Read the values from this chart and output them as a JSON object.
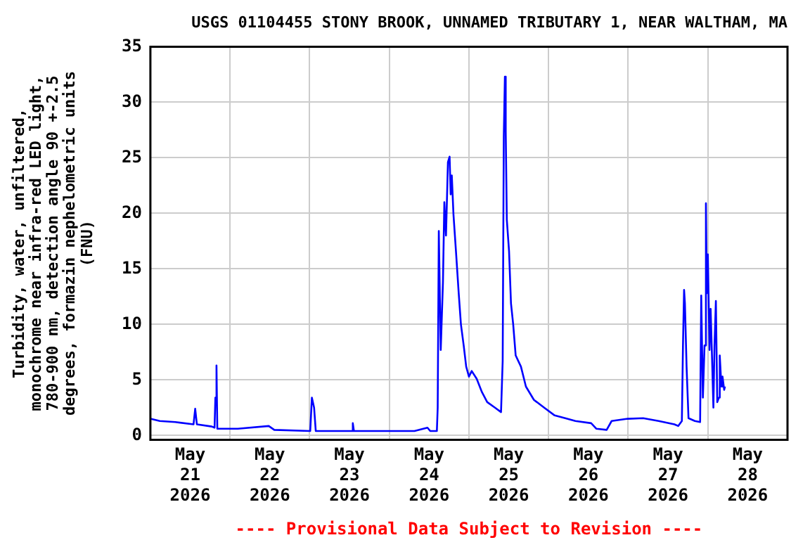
{
  "chart_data": {
    "type": "line",
    "title": "USGS 01104455 STONY BROOK, UNNAMED TRIBUTARY 1, NEAR WALTHAM, MA",
    "ylabel": "Turbidity, water, unfiltered,\nmonochrome near infra-red LED light,\n780-900 nm, detection angle 90 +-2.5\ndegrees, formazin nephelometric units\n(FNU)",
    "annotations": [
      "---- Provisional Data Subject to Revision ----"
    ],
    "x": [
      "2026-05-21T00:00",
      "2026-05-21T02:50",
      "2026-05-21T07:30",
      "2026-05-21T13:00",
      "2026-05-21T13:30",
      "2026-05-21T14:00",
      "2026-05-21T18:30",
      "2026-05-21T19:20",
      "2026-05-21T19:35",
      "2026-05-21T19:55",
      "2026-05-21T20:10",
      "2026-05-22T02:20",
      "2026-05-22T11:40",
      "2026-05-22T13:20",
      "2026-05-23T00:10",
      "2026-05-23T00:40",
      "2026-05-23T01:20",
      "2026-05-23T01:50",
      "2026-05-23T12:40",
      "2026-05-23T13:00",
      "2026-05-23T13:20",
      "2026-05-24T07:35",
      "2026-05-24T11:30",
      "2026-05-24T12:20",
      "2026-05-24T14:20",
      "2026-05-24T14:35",
      "2026-05-24T14:55",
      "2026-05-24T15:30",
      "2026-05-24T16:10",
      "2026-05-24T16:35",
      "2026-05-24T17:05",
      "2026-05-24T17:40",
      "2026-05-24T18:10",
      "2026-05-24T18:30",
      "2026-05-24T18:50",
      "2026-05-24T19:20",
      "2026-05-24T20:05",
      "2026-05-24T20:55",
      "2026-05-24T21:35",
      "2026-05-24T22:25",
      "2026-05-24T23:10",
      "2026-05-25T00:00",
      "2026-05-25T00:50",
      "2026-05-25T02:20",
      "2026-05-25T03:55",
      "2026-05-25T05:30",
      "2026-05-25T07:50",
      "2026-05-25T09:40",
      "2026-05-25T10:10",
      "2026-05-25T10:30",
      "2026-05-25T10:50",
      "2026-05-25T11:05",
      "2026-05-25T11:25",
      "2026-05-25T12:05",
      "2026-05-25T12:40",
      "2026-05-25T13:20",
      "2026-05-25T14:05",
      "2026-05-25T15:40",
      "2026-05-25T17:10",
      "2026-05-25T19:35",
      "2026-05-25T22:40",
      "2026-05-26T01:50",
      "2026-05-26T05:00",
      "2026-05-26T08:05",
      "2026-05-26T12:50",
      "2026-05-26T14:25",
      "2026-05-26T17:30",
      "2026-05-26T19:00",
      "2026-05-26T23:50",
      "2026-05-27T04:30",
      "2026-05-27T09:10",
      "2026-05-27T13:55",
      "2026-05-27T15:05",
      "2026-05-27T16:10",
      "2026-05-27T16:30",
      "2026-05-27T16:50",
      "2026-05-27T17:05",
      "2026-05-27T17:35",
      "2026-05-27T18:10",
      "2026-05-27T20:05",
      "2026-05-27T21:40",
      "2026-05-27T22:00",
      "2026-05-27T22:30",
      "2026-05-27T23:00",
      "2026-05-27T23:25",
      "2026-05-27T23:40",
      "2026-05-28T00:00",
      "2026-05-28T00:30",
      "2026-05-28T00:50",
      "2026-05-28T01:20",
      "2026-05-28T01:40",
      "2026-05-28T02:00",
      "2026-05-28T02:25",
      "2026-05-28T02:50",
      "2026-05-28T03:20",
      "2026-05-28T03:35",
      "2026-05-28T04:05",
      "2026-05-28T04:25",
      "2026-05-28T04:55",
      "2026-05-28T05:10"
    ],
    "series": [
      {
        "color": "#0000ff",
        "values": [
          1.5,
          1.3,
          1.2,
          1.0,
          2.4,
          1.0,
          0.8,
          0.7,
          3.4,
          6.3,
          0.6,
          0.6,
          0.85,
          0.5,
          0.4,
          3.4,
          2.5,
          0.4,
          0.4,
          1.1,
          0.4,
          0.4,
          0.7,
          0.4,
          0.4,
          2.5,
          18.4,
          7.7,
          13.8,
          21,
          18,
          24.6,
          25.1,
          21.7,
          23.4,
          19.9,
          16.6,
          12.8,
          10,
          8.1,
          6.2,
          5.3,
          5.8,
          5.1,
          3.9,
          3.0,
          2.5,
          2.1,
          6.7,
          26.9,
          32.3,
          27.4,
          19.4,
          16.6,
          11.9,
          10,
          7.2,
          6.2,
          4.4,
          3.2,
          2.5,
          1.8,
          1.55,
          1.3,
          1.1,
          0.6,
          0.5,
          1.3,
          1.5,
          1.55,
          1.3,
          1.0,
          0.85,
          1.3,
          8.1,
          13.1,
          11.9,
          6.2,
          1.55,
          1.3,
          1.2,
          12.6,
          3.4,
          8.1,
          20.9,
          12.8,
          16.3,
          7.7,
          11.4,
          6.2,
          2.5,
          8.1,
          12.1,
          3.0,
          3.4,
          7.2,
          4.4,
          5.3,
          4.1,
          4.4
        ]
      }
    ],
    "xlim": [
      "2026-05-21T00:00",
      "2026-05-29T00:00"
    ],
    "xticks": [
      {
        "value": "2026-05-21T12:00",
        "label": "May\n21\n2026"
      },
      {
        "value": "2026-05-22T00:00",
        "label": null
      },
      {
        "value": "2026-05-22T12:00",
        "label": "May\n22\n2026"
      },
      {
        "value": "2026-05-23T00:00",
        "label": null
      },
      {
        "value": "2026-05-23T12:00",
        "label": "May\n23\n2026"
      },
      {
        "value": "2026-05-24T00:00",
        "label": null
      },
      {
        "value": "2026-05-24T12:00",
        "label": "May\n24\n2026"
      },
      {
        "value": "2026-05-25T00:00",
        "label": null
      },
      {
        "value": "2026-05-25T12:00",
        "label": "May\n25\n2026"
      },
      {
        "value": "2026-05-26T00:00",
        "label": null
      },
      {
        "value": "2026-05-26T12:00",
        "label": "May\n26\n2026"
      },
      {
        "value": "2026-05-27T00:00",
        "label": null
      },
      {
        "value": "2026-05-27T12:00",
        "label": "May\n27\n2026"
      },
      {
        "value": "2026-05-28T00:00",
        "label": null
      },
      {
        "value": "2026-05-28T12:00",
        "label": "May\n28\n2026"
      }
    ],
    "ylim": [
      -0.4,
      35
    ],
    "yticks": [
      0,
      5,
      10,
      15,
      20,
      25,
      30,
      35
    ],
    "grid": true,
    "legend": false,
    "marker": "none",
    "line_style": "solid"
  }
}
